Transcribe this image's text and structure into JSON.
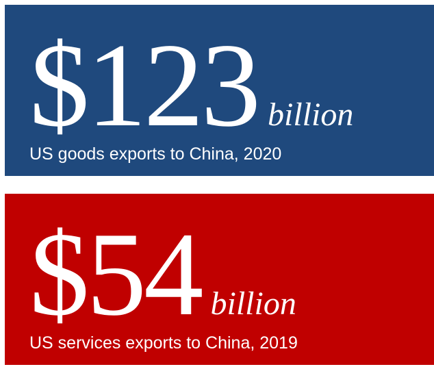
{
  "cards": [
    {
      "amount": "$123",
      "unit": "billion",
      "caption": "US goods exports to China, 2020"
    },
    {
      "amount": "$54",
      "unit": "billion",
      "caption": "US services exports to China, 2019"
    }
  ]
}
